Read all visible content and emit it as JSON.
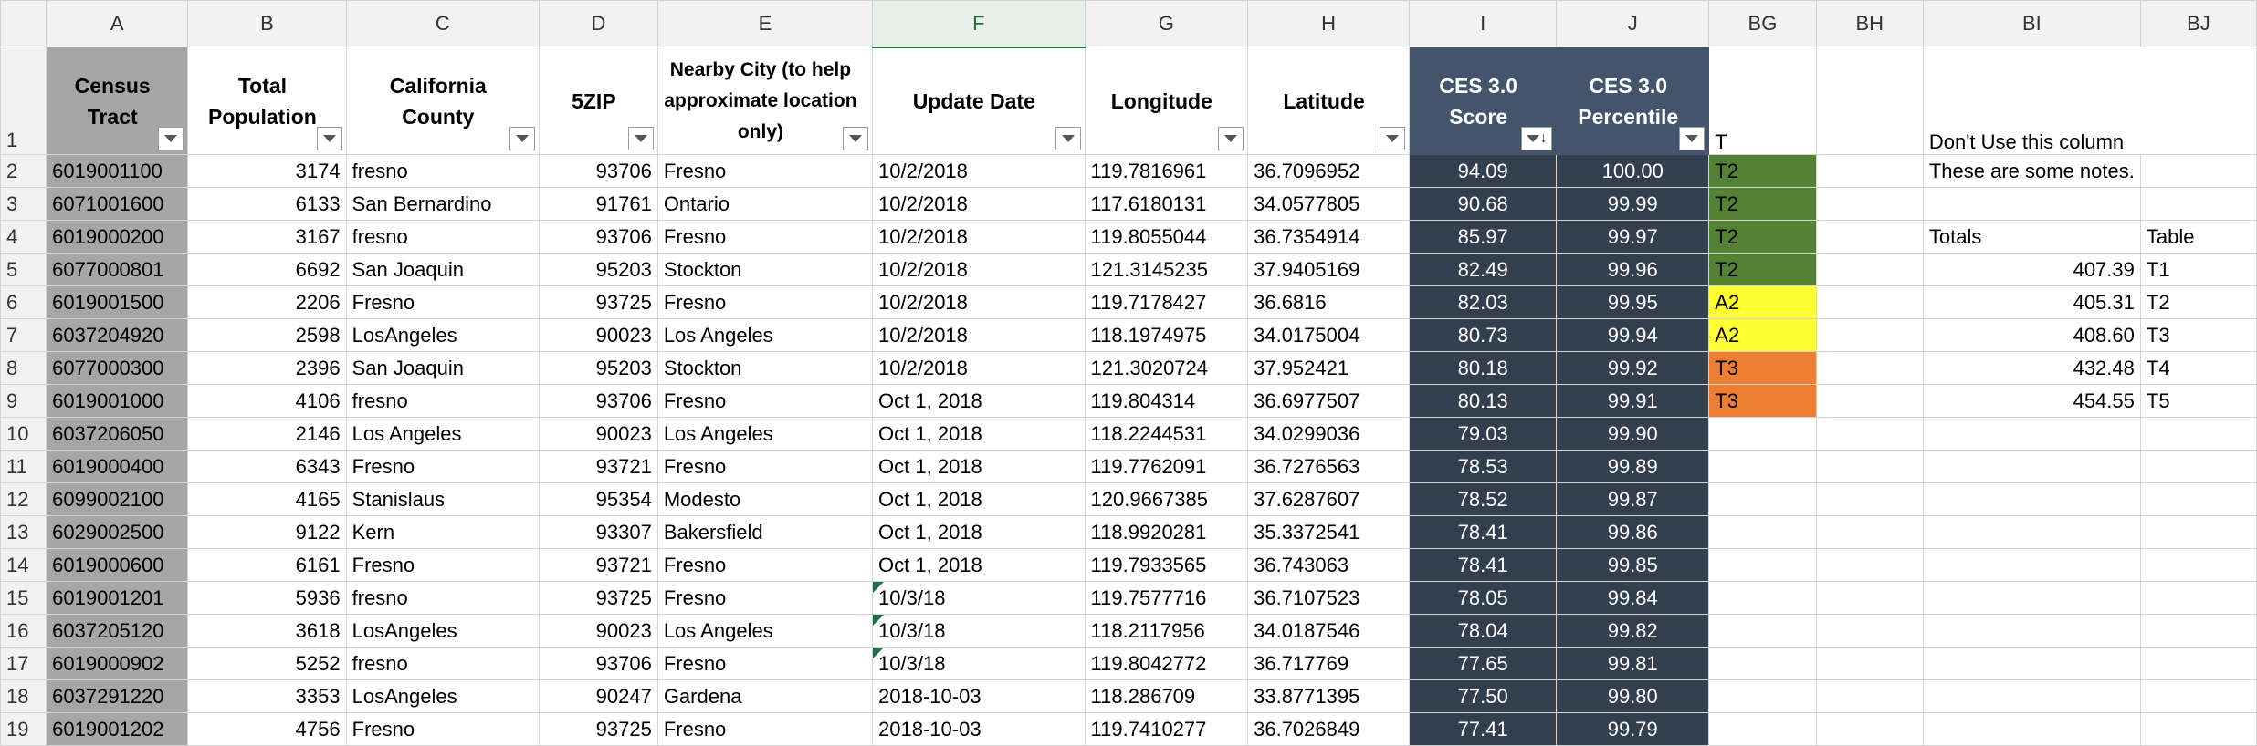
{
  "columns": [
    "A",
    "B",
    "C",
    "D",
    "E",
    "F",
    "G",
    "H",
    "I",
    "J",
    "BG",
    "BH",
    "BI",
    "BJ"
  ],
  "active_column": "F",
  "headers": {
    "census_tract": "Census Tract",
    "total_population": "Total Population",
    "county": "California County",
    "zip": "5ZIP",
    "nearby_city": "Nearby City (to help approximate location only)",
    "update_date": "Update Date",
    "longitude": "Longitude",
    "latitude": "Latitude",
    "ces_score": "CES 3.0 Score",
    "ces_percentile": "CES 3.0 Percentile",
    "bg": "T",
    "bi": "Don't Use this column"
  },
  "row_numbers": [
    "1",
    "2",
    "3",
    "4",
    "5",
    "6",
    "7",
    "8",
    "9",
    "10",
    "11",
    "12",
    "13",
    "14",
    "15",
    "16",
    "17",
    "18",
    "19"
  ],
  "rows": [
    {
      "tract": "6019001100",
      "pop": "3174",
      "county": "fresno",
      "zip": "93706",
      "city": "Fresno",
      "date": "10/2/2018",
      "lon": "119.7816961",
      "lat": "36.7096952",
      "score": "94.09",
      "pct": "100.00",
      "bg": "T2",
      "bi": "These are some notes.",
      "bj": ""
    },
    {
      "tract": "6071001600",
      "pop": "6133",
      "county": "San Bernardino",
      "zip": "91761",
      "city": "Ontario",
      "date": "10/2/2018",
      "lon": "117.6180131",
      "lat": "34.0577805",
      "score": "90.68",
      "pct": "99.99",
      "bg": "T2",
      "bi": "",
      "bj": ""
    },
    {
      "tract": "6019000200",
      "pop": "3167",
      "county": "fresno",
      "zip": "93706",
      "city": "Fresno",
      "date": "10/2/2018",
      "lon": "119.8055044",
      "lat": "36.7354914",
      "score": "85.97",
      "pct": "99.97",
      "bg": "T2",
      "bi": "Totals",
      "bj": "Table"
    },
    {
      "tract": "6077000801",
      "pop": "6692",
      "county": "San Joaquin",
      "zip": "95203",
      "city": "Stockton",
      "date": "10/2/2018",
      "lon": "121.3145235",
      "lat": "37.9405169",
      "score": "82.49",
      "pct": "99.96",
      "bg": "T2",
      "bi": "407.39",
      "bj": "T1"
    },
    {
      "tract": "6019001500",
      "pop": "2206",
      "county": "Fresno",
      "zip": "93725",
      "city": "Fresno",
      "date": "10/2/2018",
      "lon": "119.7178427",
      "lat": "36.6816",
      "score": "82.03",
      "pct": "99.95",
      "bg": "A2",
      "bi": "405.31",
      "bj": "T2"
    },
    {
      "tract": "6037204920",
      "pop": "2598",
      "county": "LosAngeles",
      "zip": "90023",
      "city": "Los Angeles",
      "date": "10/2/2018",
      "lon": "118.1974975",
      "lat": "34.0175004",
      "score": "80.73",
      "pct": "99.94",
      "bg": "A2",
      "bi": "408.60",
      "bj": "T3"
    },
    {
      "tract": "6077000300",
      "pop": "2396",
      "county": "San Joaquin",
      "zip": "95203",
      "city": "Stockton",
      "date": "10/2/2018",
      "lon": "121.3020724",
      "lat": "37.952421",
      "score": "80.18",
      "pct": "99.92",
      "bg": "T3",
      "bi": "432.48",
      "bj": "T4"
    },
    {
      "tract": "6019001000",
      "pop": "4106",
      "county": "fresno",
      "zip": "93706",
      "city": "Fresno",
      "date": "Oct 1, 2018",
      "lon": "119.804314",
      "lat": "36.6977507",
      "score": "80.13",
      "pct": "99.91",
      "bg": "T3",
      "bi": "454.55",
      "bj": "T5"
    },
    {
      "tract": "6037206050",
      "pop": "2146",
      "county": "Los Angeles",
      "zip": "90023",
      "city": "Los Angeles",
      "date": "Oct 1, 2018",
      "lon": "118.2244531",
      "lat": "34.0299036",
      "score": "79.03",
      "pct": "99.90",
      "bg": "",
      "bi": "",
      "bj": ""
    },
    {
      "tract": "6019000400",
      "pop": "6343",
      "county": "Fresno",
      "zip": "93721",
      "city": "Fresno",
      "date": "Oct 1, 2018",
      "lon": "119.7762091",
      "lat": "36.7276563",
      "score": "78.53",
      "pct": "99.89",
      "bg": "",
      "bi": "",
      "bj": ""
    },
    {
      "tract": "6099002100",
      "pop": "4165",
      "county": "Stanislaus",
      "zip": "95354",
      "city": "Modesto",
      "date": "Oct 1, 2018",
      "lon": "120.9667385",
      "lat": "37.6287607",
      "score": "78.52",
      "pct": "99.87",
      "bg": "",
      "bi": "",
      "bj": ""
    },
    {
      "tract": "6029002500",
      "pop": "9122",
      "county": "Kern",
      "zip": "93307",
      "city": "Bakersfield",
      "date": "Oct 1, 2018",
      "lon": "118.9920281",
      "lat": "35.3372541",
      "score": "78.41",
      "pct": "99.86",
      "bg": "",
      "bi": "",
      "bj": ""
    },
    {
      "tract": "6019000600",
      "pop": "6161",
      "county": "Fresno",
      "zip": "93721",
      "city": "Fresno",
      "date": "Oct 1, 2018",
      "lon": "119.7933565",
      "lat": "36.743063",
      "score": "78.41",
      "pct": "99.85",
      "bg": "",
      "bi": "",
      "bj": ""
    },
    {
      "tract": "6019001201",
      "pop": "5936",
      "county": "fresno",
      "zip": "93725",
      "city": "Fresno",
      "date": "10/3/18",
      "lon": "119.7577716",
      "lat": "36.7107523",
      "score": "78.05",
      "pct": "99.84",
      "bg": "",
      "bi": "",
      "bj": ""
    },
    {
      "tract": "6037205120",
      "pop": "3618",
      "county": "LosAngeles",
      "zip": "90023",
      "city": "Los Angeles",
      "date": "10/3/18",
      "lon": "118.2117956",
      "lat": "34.0187546",
      "score": "78.04",
      "pct": "99.82",
      "bg": "",
      "bi": "",
      "bj": ""
    },
    {
      "tract": "6019000902",
      "pop": "5252",
      "county": "fresno",
      "zip": "93706",
      "city": "Fresno",
      "date": "10/3/18",
      "lon": "119.8042772",
      "lat": "36.717769",
      "score": "77.65",
      "pct": "99.81",
      "bg": "",
      "bi": "",
      "bj": ""
    },
    {
      "tract": "6037291220",
      "pop": "3353",
      "county": "LosAngeles",
      "zip": "90247",
      "city": "Gardena",
      "date": "2018-10-03",
      "lon": "118.286709",
      "lat": "33.8771395",
      "score": "77.50",
      "pct": "99.80",
      "bg": "",
      "bi": "",
      "bj": ""
    },
    {
      "tract": "6019001202",
      "pop": "4756",
      "county": "Fresno",
      "zip": "93725",
      "city": "Fresno",
      "date": "2018-10-03",
      "lon": "119.7410277",
      "lat": "36.7026849",
      "score": "77.41",
      "pct": "99.79",
      "bg": "",
      "bi": "",
      "bj": ""
    }
  ],
  "colors": {
    "tract_fill": "#a6a6a6",
    "ces_header": "#44546a",
    "ces_body": "#323f4f",
    "green": "#548235",
    "yellow": "#ffff33",
    "orange": "#ed7d31",
    "selection": "#1e7145"
  },
  "icons": {
    "filter": "filter-dropdown-icon",
    "sort": "sort-descending-icon"
  }
}
